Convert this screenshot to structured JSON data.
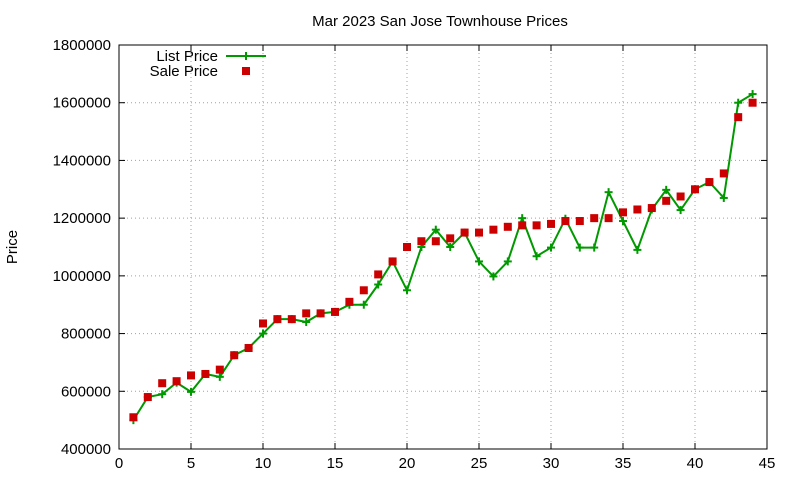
{
  "chart_data": {
    "type": "line",
    "title": "Mar 2023 San Jose Townhouse Prices",
    "xlabel": "",
    "ylabel": "Price",
    "xlim": [
      0,
      45
    ],
    "ylim": [
      400000,
      1800000
    ],
    "x_ticks": [
      0,
      5,
      10,
      15,
      20,
      25,
      30,
      35,
      40,
      45
    ],
    "y_ticks": [
      400000,
      600000,
      800000,
      1000000,
      1200000,
      1400000,
      1600000,
      1800000
    ],
    "grid": true,
    "legend_position": "top-left",
    "series": [
      {
        "name": "List Price",
        "style": "linespoints",
        "marker": "plus",
        "color": "#009900",
        "x": [
          1,
          2,
          3,
          4,
          5,
          6,
          7,
          8,
          9,
          10,
          11,
          12,
          13,
          14,
          15,
          16,
          17,
          18,
          19,
          20,
          21,
          22,
          23,
          24,
          25,
          26,
          27,
          28,
          29,
          30,
          31,
          32,
          33,
          34,
          35,
          36,
          37,
          38,
          39,
          40,
          41,
          42,
          43,
          44
        ],
        "values": [
          500000,
          580000,
          590000,
          630000,
          598000,
          660000,
          650000,
          725000,
          750000,
          800000,
          850000,
          850000,
          840000,
          870000,
          875000,
          900000,
          900000,
          970000,
          1050000,
          950000,
          1100000,
          1160000,
          1100000,
          1150000,
          1050000,
          998000,
          1050000,
          1200000,
          1068000,
          1098000,
          1198000,
          1098000,
          1098000,
          1290000,
          1190000,
          1090000,
          1230000,
          1298000,
          1228000,
          1300000,
          1325000,
          1270000,
          1600000,
          1630000
        ]
      },
      {
        "name": "Sale Price",
        "style": "points",
        "marker": "square",
        "color": "#cc0000",
        "x": [
          1,
          2,
          3,
          4,
          5,
          6,
          7,
          8,
          9,
          10,
          11,
          12,
          13,
          14,
          15,
          16,
          17,
          18,
          19,
          20,
          21,
          22,
          23,
          24,
          25,
          26,
          27,
          28,
          29,
          30,
          31,
          32,
          33,
          34,
          35,
          36,
          37,
          38,
          39,
          40,
          41,
          42,
          43,
          44
        ],
        "values": [
          510000,
          580000,
          628000,
          635000,
          655000,
          660000,
          675000,
          725000,
          750000,
          835000,
          850000,
          850000,
          870000,
          870000,
          875000,
          910000,
          950000,
          1005000,
          1050000,
          1100000,
          1120000,
          1120000,
          1130000,
          1150000,
          1150000,
          1160000,
          1170000,
          1175000,
          1175000,
          1180000,
          1190000,
          1190000,
          1200000,
          1200000,
          1220000,
          1230000,
          1235000,
          1260000,
          1275000,
          1300000,
          1325000,
          1355000,
          1550000,
          1600000
        ]
      }
    ]
  }
}
